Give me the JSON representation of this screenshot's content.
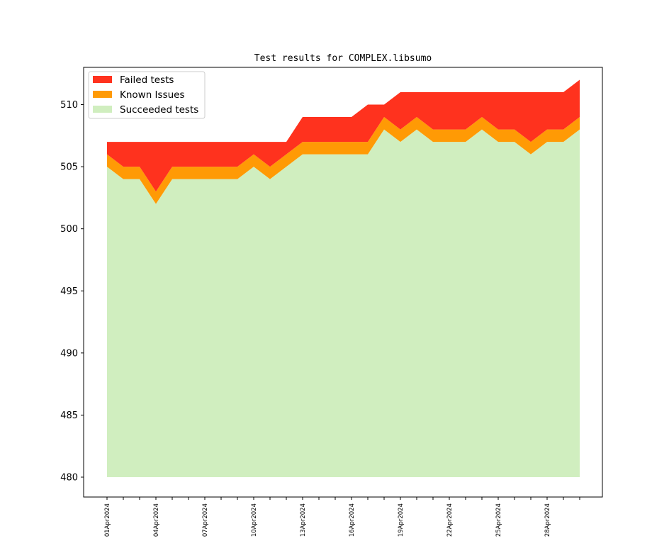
{
  "chart_data": {
    "type": "area",
    "title": "Test results for COMPLEX.libsumo",
    "xlabel": "",
    "ylabel": "",
    "ylim": [
      478.4,
      513.0
    ],
    "yticks": [
      480,
      485,
      490,
      495,
      500,
      505,
      510
    ],
    "x": [
      "01Apr2024",
      "02Apr2024",
      "03Apr2024",
      "04Apr2024",
      "05Apr2024",
      "06Apr2024",
      "07Apr2024",
      "08Apr2024",
      "09Apr2024",
      "10Apr2024",
      "11Apr2024",
      "12Apr2024",
      "13Apr2024",
      "14Apr2024",
      "15Apr2024",
      "16Apr2024",
      "17Apr2024",
      "18Apr2024",
      "19Apr2024",
      "20Apr2024",
      "21Apr2024",
      "22Apr2024",
      "23Apr2024",
      "24Apr2024",
      "25Apr2024",
      "26Apr2024",
      "27Apr2024",
      "28Apr2024",
      "29Apr2024",
      "30Apr2024"
    ],
    "xtick_labels": [
      "01Apr2024",
      "04Apr2024",
      "07Apr2024",
      "10Apr2024",
      "13Apr2024",
      "16Apr2024",
      "19Apr2024",
      "22Apr2024",
      "25Apr2024",
      "28Apr2024"
    ],
    "baseline": 480,
    "series": [
      {
        "name": "Succeeded tests",
        "color": "#d0eebf",
        "values": [
          505,
          504,
          504,
          502,
          504,
          504,
          504,
          504,
          504,
          505,
          504,
          505,
          506,
          506,
          506,
          506,
          506,
          508,
          507,
          508,
          507,
          507,
          507,
          508,
          507,
          507,
          506,
          507,
          507,
          508
        ]
      },
      {
        "name": "Known Issues",
        "color": "#ff9a05",
        "values": [
          1,
          1,
          1,
          1,
          1,
          1,
          1,
          1,
          1,
          1,
          1,
          1,
          1,
          1,
          1,
          1,
          1,
          1,
          1,
          1,
          1,
          1,
          1,
          1,
          1,
          1,
          1,
          1,
          1,
          1
        ]
      },
      {
        "name": "Failed tests",
        "color": "#ff321e",
        "values": [
          1,
          2,
          2,
          4,
          2,
          2,
          2,
          2,
          2,
          1,
          2,
          1,
          2,
          2,
          2,
          2,
          3,
          1,
          3,
          2,
          3,
          3,
          3,
          2,
          3,
          3,
          4,
          3,
          3,
          3
        ]
      }
    ],
    "legend": {
      "position": "top-left",
      "order": [
        "Failed tests",
        "Known Issues",
        "Succeeded tests"
      ]
    },
    "grid": false
  }
}
